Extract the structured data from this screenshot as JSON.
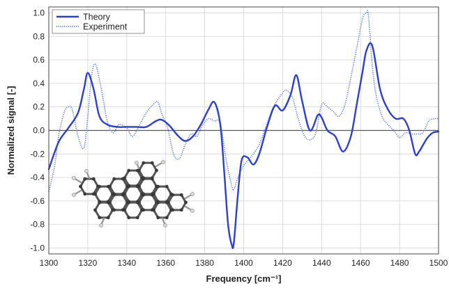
{
  "chart_data": {
    "type": "line",
    "xlabel": "Frequency [cm⁻¹]",
    "ylabel": "Normalized signal [-]",
    "xlim": [
      1300,
      1500
    ],
    "ylim": [
      -1.05,
      1.05
    ],
    "x_ticks": [
      "1300",
      "1320",
      "1340",
      "1360",
      "1380",
      "1400",
      "1420",
      "1440",
      "1460",
      "1480",
      "1500"
    ],
    "y_ticks": [
      "1.0",
      "0.8",
      "0.6",
      "0.4",
      "0.2",
      "0.0",
      "-0.2",
      "-0.4",
      "-0.6",
      "-0.8",
      "-1.0"
    ],
    "grid": true,
    "zero_line": true,
    "legend": {
      "position": "top-left",
      "entries": [
        "Theory",
        "Experiment"
      ]
    },
    "series": [
      {
        "name": "Theory",
        "style": "solid",
        "color": "#2d3fd3",
        "x": [
          1300,
          1305,
          1310,
          1315,
          1318,
          1320,
          1323,
          1326,
          1330,
          1335,
          1340,
          1345,
          1350,
          1355,
          1358,
          1362,
          1366,
          1370,
          1374,
          1378,
          1382,
          1385,
          1388,
          1390,
          1392,
          1394,
          1395,
          1397,
          1399,
          1402,
          1405,
          1408,
          1412,
          1416,
          1420,
          1424,
          1427,
          1430,
          1434,
          1438,
          1440,
          1443,
          1447,
          1451,
          1455,
          1458,
          1461,
          1463,
          1466,
          1470,
          1474,
          1478,
          1482,
          1485,
          1488,
          1490,
          1494,
          1497,
          1500
        ],
        "y": [
          -0.33,
          -0.1,
          0.02,
          0.15,
          0.35,
          0.49,
          0.35,
          0.12,
          0.05,
          0.03,
          0.03,
          0.03,
          0.03,
          0.08,
          0.09,
          0.04,
          -0.04,
          -0.09,
          -0.05,
          0.05,
          0.18,
          0.24,
          0.05,
          -0.35,
          -0.8,
          -0.98,
          -0.95,
          -0.55,
          -0.25,
          -0.23,
          -0.29,
          -0.2,
          0.03,
          0.21,
          0.17,
          0.3,
          0.47,
          0.25,
          0.0,
          0.13,
          0.11,
          0.0,
          -0.05,
          -0.18,
          -0.05,
          0.22,
          0.5,
          0.68,
          0.72,
          0.35,
          0.18,
          0.1,
          0.1,
          0.0,
          -0.2,
          -0.18,
          -0.07,
          -0.02,
          -0.01
        ]
      },
      {
        "name": "Experiment",
        "style": "dotted",
        "color": "#5a78e8",
        "x": [
          1300,
          1303,
          1305,
          1308,
          1310,
          1312,
          1315,
          1318,
          1320,
          1322,
          1324,
          1327,
          1330,
          1333,
          1336,
          1340,
          1343,
          1347,
          1350,
          1354,
          1356,
          1358,
          1361,
          1364,
          1367,
          1370,
          1373,
          1376,
          1379,
          1382,
          1385,
          1388,
          1391,
          1394,
          1395,
          1397,
          1400,
          1404,
          1408,
          1412,
          1416,
          1420,
          1422,
          1425,
          1428,
          1431,
          1434,
          1437,
          1440,
          1443,
          1446,
          1449,
          1452,
          1455,
          1458,
          1461,
          1463,
          1464,
          1466,
          1468,
          1471,
          1474,
          1477,
          1480,
          1483,
          1486,
          1489,
          1492,
          1495,
          1498,
          1500
        ],
        "y": [
          -0.52,
          -0.3,
          -0.05,
          0.16,
          0.2,
          0.18,
          -0.05,
          -0.15,
          0.12,
          0.47,
          0.56,
          0.35,
          0.08,
          -0.02,
          0.05,
          0.02,
          -0.05,
          0.06,
          0.15,
          0.23,
          0.24,
          0.14,
          0.02,
          -0.2,
          -0.24,
          -0.12,
          -0.03,
          -0.05,
          0.05,
          0.1,
          0.08,
          0.06,
          -0.25,
          -0.48,
          -0.5,
          -0.4,
          -0.3,
          -0.22,
          -0.12,
          0.06,
          0.22,
          0.32,
          0.34,
          0.28,
          0.1,
          -0.04,
          -0.08,
          -0.02,
          0.22,
          0.2,
          0.16,
          0.12,
          0.22,
          0.45,
          0.7,
          0.95,
          1.0,
          0.98,
          0.55,
          0.3,
          0.12,
          0.05,
          0.0,
          -0.06,
          -0.02,
          -0.03,
          -0.03,
          -0.02,
          0.08,
          0.1,
          0.1
        ]
      }
    ]
  },
  "inset": {
    "name": "molecule-structure"
  }
}
